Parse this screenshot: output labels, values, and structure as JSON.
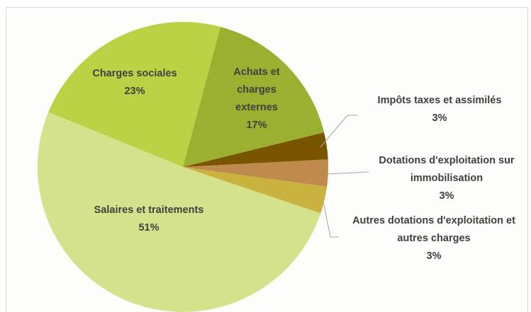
{
  "chart_data": {
    "type": "pie",
    "categories": [
      "Achats et charges externes",
      "Impôts taxes et assimilés",
      "Dotations d'exploitation sur immobilisation",
      "Autres dotations d'exploitation et autres charges",
      "Salaires et traitements",
      "Charges sociales"
    ],
    "values": [
      17,
      3,
      3,
      3,
      51,
      23
    ],
    "value_labels": [
      "17%",
      "3%",
      "3%",
      "3%",
      "51%",
      "23%"
    ],
    "colors": [
      "#9bb030",
      "#7a5500",
      "#bf8a4c",
      "#c9b23e",
      "#d4e28c",
      "#bcd245"
    ]
  }
}
